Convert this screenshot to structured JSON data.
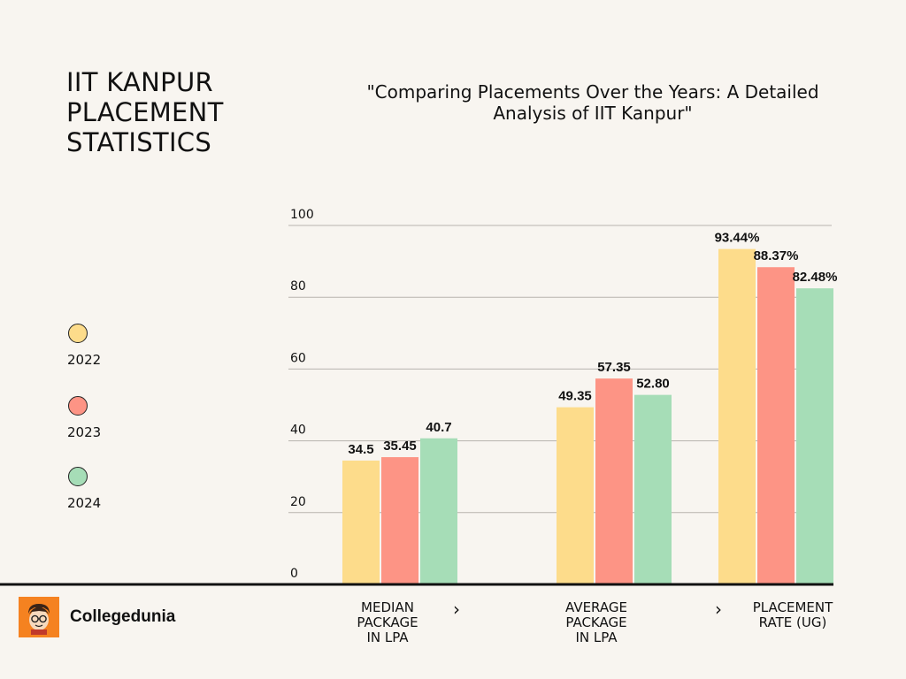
{
  "title": "IIT KANPUR\nPLACEMENT\nSTATISTICS",
  "subtitle": "\"Comparing Placements Over the Years: A Detailed Analysis of IIT Kanpur\"",
  "brand": {
    "name": "Collegedunia",
    "logo_icon": "cartoon-student-avatar-icon",
    "logo_color": "#f58220"
  },
  "chevron_icon": "chevron-right-icon",
  "chart_data": {
    "type": "bar",
    "categories": [
      "MEDIAN\nPACKAGE\nIN LPA",
      "AVERAGE\nPACKAGE\nIN LPA",
      "PLACEMENT\nRATE (UG)"
    ],
    "series": [
      {
        "name": "2022",
        "color": "#fddc8b",
        "values": [
          34.5,
          49.35,
          93.44
        ],
        "labels": [
          "34.5",
          "49.35",
          "93.44%"
        ]
      },
      {
        "name": "2023",
        "color": "#fd9485",
        "values": [
          35.45,
          57.35,
          88.37
        ],
        "labels": [
          "35.45",
          "57.35",
          "88.37%"
        ]
      },
      {
        "name": "2024",
        "color": "#a6ddb7",
        "values": [
          40.7,
          52.8,
          82.48
        ],
        "labels": [
          "40.7",
          "52.80",
          "82.48%"
        ]
      }
    ],
    "y_ticks": [
      "0",
      "20",
      "40",
      "60",
      "80",
      "100"
    ],
    "ylim": [
      0,
      100
    ],
    "grid": true,
    "legend_position": "left"
  }
}
